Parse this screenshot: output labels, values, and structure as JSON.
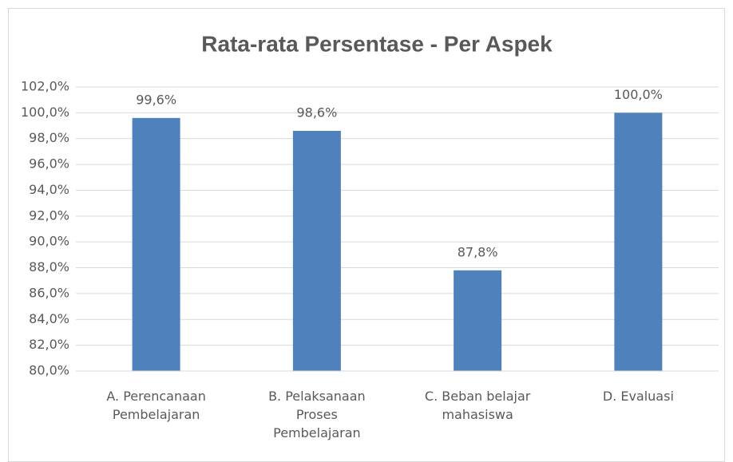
{
  "chart_data": {
    "type": "bar",
    "title": "Rata-rata Persentase - Per Aspek",
    "categories": [
      "A. Perencanaan Pembelajaran",
      "B. Pelaksanaan Proses Pembelajaran",
      "C. Beban belajar mahasiswa",
      "D. Evaluasi"
    ],
    "values": [
      99.6,
      98.6,
      87.8,
      100.0
    ],
    "value_labels": [
      "99,6%",
      "98,6%",
      "87,8%",
      "100,0%"
    ],
    "color": "#4f81bd",
    "ylim": [
      80,
      102
    ],
    "yticks": [
      {
        "value": 80,
        "label": "80,0%"
      },
      {
        "value": 82,
        "label": "82,0%"
      },
      {
        "value": 84,
        "label": "84,0%"
      },
      {
        "value": 86,
        "label": "86,0%"
      },
      {
        "value": 88,
        "label": "88,0%"
      },
      {
        "value": 90,
        "label": "90,0%"
      },
      {
        "value": 92,
        "label": "92,0%"
      },
      {
        "value": 94,
        "label": "94,0%"
      },
      {
        "value": 96,
        "label": "96,0%"
      },
      {
        "value": 98,
        "label": "98,0%"
      },
      {
        "value": 100,
        "label": "100,0%"
      },
      {
        "value": 102,
        "label": "102,0%"
      }
    ],
    "grid": true
  }
}
